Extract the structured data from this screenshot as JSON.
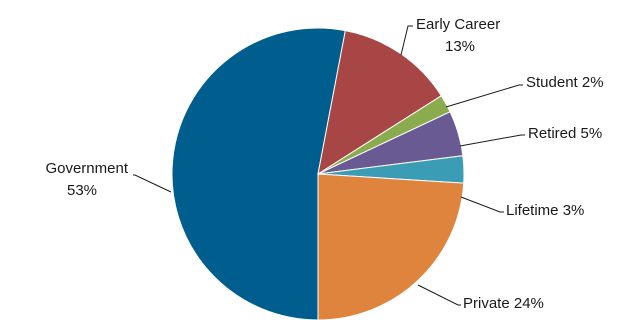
{
  "chart_data": {
    "type": "pie",
    "title": "",
    "legend": "none",
    "start_angle_deg": 180,
    "direction": "clockwise",
    "slices": [
      {
        "label": "Government",
        "value": 53,
        "label_text": [
          "Government",
          "53%"
        ],
        "color": "#005e8f"
      },
      {
        "label": "Early Career",
        "value": 13,
        "label_text": [
          "Early Career",
          "13%"
        ],
        "color": "#a84545"
      },
      {
        "label": "Student",
        "value": 2,
        "label_text": [
          "Student 2%"
        ],
        "color": "#8bab4f"
      },
      {
        "label": "Retired",
        "value": 5,
        "label_text": [
          "Retired 5%"
        ],
        "color": "#6a5a93"
      },
      {
        "label": "Lifetime",
        "value": 3,
        "label_text": [
          "Lifetime 3%"
        ],
        "color": "#3b9cb5"
      },
      {
        "label": "Private",
        "value": 24,
        "label_text": [
          "Private 24%"
        ],
        "color": "#df843d"
      }
    ]
  }
}
